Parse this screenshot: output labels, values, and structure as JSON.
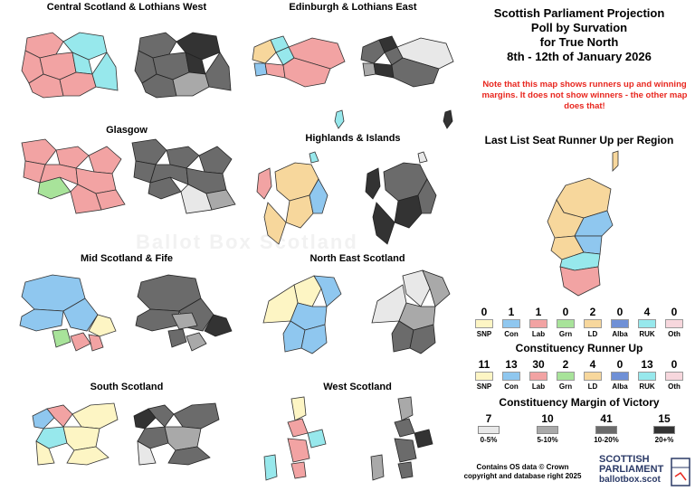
{
  "watermark": "Ballot Box Scotland",
  "title_lines": [
    "Scottish Parliament Projection",
    "Poll by Survation",
    "for True North",
    "8th - 12th of January 2026"
  ],
  "note": "Note that this map shows runners up and winning margins. It does not show winners - the other map does that!",
  "regions": [
    {
      "name": "Central Scotland & Lothians West"
    },
    {
      "name": "Edinburgh & Lothians East"
    },
    {
      "name": "Glasgow"
    },
    {
      "name": "Highlands & Islands"
    },
    {
      "name": "Mid Scotland & Fife"
    },
    {
      "name": "North East Scotland"
    },
    {
      "name": "South Scotland"
    },
    {
      "name": "West Scotland"
    }
  ],
  "list_heading": "Last List Seat Runner Up per Region",
  "list_runner_up": [
    {
      "party": "SNP",
      "count": "0",
      "color": "#fdf5c4"
    },
    {
      "party": "Con",
      "count": "1",
      "color": "#8fc7ef"
    },
    {
      "party": "Lab",
      "count": "1",
      "color": "#f2a3a3"
    },
    {
      "party": "Grn",
      "count": "0",
      "color": "#a8e39a"
    },
    {
      "party": "LD",
      "count": "2",
      "color": "#f7d79c"
    },
    {
      "party": "Alba",
      "count": "0",
      "color": "#6f90d6"
    },
    {
      "party": "RUK",
      "count": "4",
      "color": "#97e8ec"
    },
    {
      "party": "Oth",
      "count": "0",
      "color": "#f7d7dd"
    }
  ],
  "constituency_heading": "Constituency Runner Up",
  "constituency_runner_up": [
    {
      "party": "SNP",
      "count": "11",
      "color": "#fdf5c4"
    },
    {
      "party": "Con",
      "count": "13",
      "color": "#8fc7ef"
    },
    {
      "party": "Lab",
      "count": "30",
      "color": "#f2a3a3"
    },
    {
      "party": "Grn",
      "count": "2",
      "color": "#a8e39a"
    },
    {
      "party": "LD",
      "count": "4",
      "color": "#f7d79c"
    },
    {
      "party": "Alba",
      "count": "0",
      "color": "#6f90d6"
    },
    {
      "party": "RUK",
      "count": "13",
      "color": "#97e8ec"
    },
    {
      "party": "Oth",
      "count": "0",
      "color": "#f7d7dd"
    }
  ],
  "margin_heading": "Constituency Margin of Victory",
  "margins": [
    {
      "label": "0-5%",
      "count": "7",
      "color": "#e8e8e8"
    },
    {
      "label": "5-10%",
      "count": "10",
      "color": "#a9a9a9"
    },
    {
      "label": "10-20%",
      "count": "41",
      "color": "#6b6b6b"
    },
    {
      "label": "20+%",
      "count": "15",
      "color": "#333333"
    }
  ],
  "credit_lines": [
    "Contains OS data © Crown",
    "copyright and database right 2025"
  ],
  "logo": {
    "line1": "SCOTTISH",
    "line2": "PARLIAMENT",
    "line3": "ballotbox.scot"
  }
}
